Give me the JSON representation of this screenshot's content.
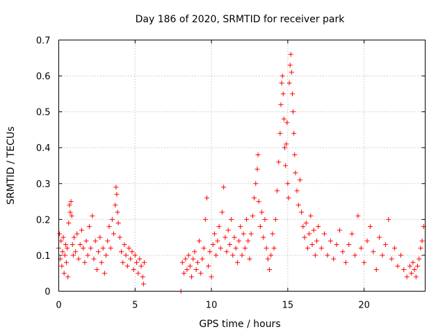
{
  "chart_data": {
    "type": "scatter",
    "title": "Day 186 of 2020, SRMTID for receiver park",
    "xlabel": "GPS time / hours",
    "ylabel": "SRMTID / TECUs",
    "xlim": [
      0,
      24
    ],
    "ylim": [
      0,
      0.7
    ],
    "x_ticks": [
      0,
      5,
      10,
      15,
      20
    ],
    "y_ticks": [
      0,
      0.1,
      0.2,
      0.3,
      0.4,
      0.5,
      0.6,
      0.7
    ],
    "x_tick_labels": [
      "0",
      "5",
      "10",
      "15",
      "20"
    ],
    "y_tick_labels": [
      "0",
      "0.1",
      "0.2",
      "0.3",
      "0.4",
      "0.5",
      "0.6",
      "0.7"
    ],
    "grid": true,
    "marker": "+",
    "marker_color": "#ff0000",
    "series": [
      {
        "name": "SRMTID",
        "points": [
          [
            0.0,
            0.12
          ],
          [
            0.05,
            0.16
          ],
          [
            0.1,
            0.09
          ],
          [
            0.15,
            0.14
          ],
          [
            0.2,
            0.07
          ],
          [
            0.25,
            0.11
          ],
          [
            0.3,
            0.15
          ],
          [
            0.35,
            0.05
          ],
          [
            0.4,
            0.1
          ],
          [
            0.45,
            0.13
          ],
          [
            0.5,
            0.08
          ],
          [
            0.55,
            0.12
          ],
          [
            0.6,
            0.04
          ],
          [
            0.65,
            0.19
          ],
          [
            0.7,
            0.24
          ],
          [
            0.75,
            0.22
          ],
          [
            0.8,
            0.25
          ],
          [
            0.85,
            0.21
          ],
          [
            0.9,
            0.13
          ],
          [
            0.95,
            0.1
          ],
          [
            1.0,
            0.15
          ],
          [
            1.1,
            0.11
          ],
          [
            1.2,
            0.16
          ],
          [
            1.3,
            0.09
          ],
          [
            1.4,
            0.13
          ],
          [
            1.5,
            0.17
          ],
          [
            1.6,
            0.12
          ],
          [
            1.7,
            0.08
          ],
          [
            1.8,
            0.14
          ],
          [
            1.9,
            0.1
          ],
          [
            2.0,
            0.18
          ],
          [
            2.1,
            0.12
          ],
          [
            2.2,
            0.21
          ],
          [
            2.3,
            0.09
          ],
          [
            2.4,
            0.14
          ],
          [
            2.5,
            0.06
          ],
          [
            2.6,
            0.11
          ],
          [
            2.7,
            0.15
          ],
          [
            2.8,
            0.08
          ],
          [
            2.9,
            0.12
          ],
          [
            3.0,
            0.05
          ],
          [
            3.1,
            0.1
          ],
          [
            3.2,
            0.14
          ],
          [
            3.3,
            0.18
          ],
          [
            3.4,
            0.12
          ],
          [
            3.5,
            0.2
          ],
          [
            3.6,
            0.16
          ],
          [
            3.7,
            0.24
          ],
          [
            3.75,
            0.29
          ],
          [
            3.8,
            0.27
          ],
          [
            3.85,
            0.22
          ],
          [
            3.9,
            0.19
          ],
          [
            4.0,
            0.15
          ],
          [
            4.1,
            0.11
          ],
          [
            4.2,
            0.08
          ],
          [
            4.3,
            0.13
          ],
          [
            4.4,
            0.1
          ],
          [
            4.5,
            0.07
          ],
          [
            4.6,
            0.12
          ],
          [
            4.7,
            0.09
          ],
          [
            4.8,
            0.11
          ],
          [
            4.9,
            0.06
          ],
          [
            5.0,
            0.1
          ],
          [
            5.1,
            0.08
          ],
          [
            5.2,
            0.05
          ],
          [
            5.3,
            0.09
          ],
          [
            5.4,
            0.07
          ],
          [
            5.5,
            0.04
          ],
          [
            5.55,
            0.02
          ],
          [
            5.6,
            0.08
          ],
          [
            8.0,
            0.0
          ],
          [
            8.1,
            0.08
          ],
          [
            8.2,
            0.05
          ],
          [
            8.3,
            0.09
          ],
          [
            8.4,
            0.06
          ],
          [
            8.5,
            0.1
          ],
          [
            8.6,
            0.07
          ],
          [
            8.7,
            0.04
          ],
          [
            8.8,
            0.09
          ],
          [
            8.9,
            0.11
          ],
          [
            9.0,
            0.06
          ],
          [
            9.1,
            0.08
          ],
          [
            9.2,
            0.14
          ],
          [
            9.3,
            0.05
          ],
          [
            9.4,
            0.09
          ],
          [
            9.5,
            0.12
          ],
          [
            9.6,
            0.2
          ],
          [
            9.7,
            0.26
          ],
          [
            9.8,
            0.07
          ],
          [
            9.9,
            0.11
          ],
          [
            10.0,
            0.04
          ],
          [
            10.1,
            0.13
          ],
          [
            10.2,
            0.16
          ],
          [
            10.3,
            0.1
          ],
          [
            10.4,
            0.14
          ],
          [
            10.5,
            0.18
          ],
          [
            10.6,
            0.12
          ],
          [
            10.7,
            0.22
          ],
          [
            10.8,
            0.29
          ],
          [
            10.9,
            0.15
          ],
          [
            11.0,
            0.11
          ],
          [
            11.1,
            0.17
          ],
          [
            11.2,
            0.13
          ],
          [
            11.3,
            0.2
          ],
          [
            11.4,
            0.1
          ],
          [
            11.5,
            0.15
          ],
          [
            11.6,
            0.12
          ],
          [
            11.7,
            0.08
          ],
          [
            11.8,
            0.14
          ],
          [
            11.9,
            0.18
          ],
          [
            12.0,
            0.1
          ],
          [
            12.1,
            0.16
          ],
          [
            12.2,
            0.12
          ],
          [
            12.3,
            0.2
          ],
          [
            12.4,
            0.14
          ],
          [
            12.5,
            0.09
          ],
          [
            12.6,
            0.16
          ],
          [
            12.7,
            0.21
          ],
          [
            12.8,
            0.26
          ],
          [
            12.9,
            0.3
          ],
          [
            13.0,
            0.34
          ],
          [
            13.05,
            0.38
          ],
          [
            13.1,
            0.25
          ],
          [
            13.2,
            0.18
          ],
          [
            13.3,
            0.22
          ],
          [
            13.4,
            0.15
          ],
          [
            13.5,
            0.2
          ],
          [
            13.6,
            0.12
          ],
          [
            13.7,
            0.09
          ],
          [
            13.8,
            0.06
          ],
          [
            13.9,
            0.1
          ],
          [
            14.0,
            0.16
          ],
          [
            14.1,
            0.12
          ],
          [
            14.2,
            0.2
          ],
          [
            14.3,
            0.28
          ],
          [
            14.4,
            0.36
          ],
          [
            14.5,
            0.44
          ],
          [
            14.55,
            0.52
          ],
          [
            14.6,
            0.58
          ],
          [
            14.65,
            0.6
          ],
          [
            14.7,
            0.55
          ],
          [
            14.75,
            0.48
          ],
          [
            14.8,
            0.4
          ],
          [
            14.85,
            0.35
          ],
          [
            14.9,
            0.41
          ],
          [
            14.95,
            0.47
          ],
          [
            15.0,
            0.3
          ],
          [
            15.05,
            0.26
          ],
          [
            15.1,
            0.58
          ],
          [
            15.15,
            0.63
          ],
          [
            15.2,
            0.66
          ],
          [
            15.25,
            0.61
          ],
          [
            15.3,
            0.55
          ],
          [
            15.35,
            0.5
          ],
          [
            15.4,
            0.44
          ],
          [
            15.45,
            0.38
          ],
          [
            15.5,
            0.33
          ],
          [
            15.6,
            0.28
          ],
          [
            15.7,
            0.24
          ],
          [
            15.8,
            0.31
          ],
          [
            15.9,
            0.22
          ],
          [
            16.0,
            0.18
          ],
          [
            16.1,
            0.15
          ],
          [
            16.2,
            0.19
          ],
          [
            16.3,
            0.12
          ],
          [
            16.4,
            0.16
          ],
          [
            16.5,
            0.21
          ],
          [
            16.6,
            0.13
          ],
          [
            16.7,
            0.17
          ],
          [
            16.8,
            0.1
          ],
          [
            16.9,
            0.14
          ],
          [
            17.0,
            0.18
          ],
          [
            17.2,
            0.12
          ],
          [
            17.4,
            0.16
          ],
          [
            17.6,
            0.1
          ],
          [
            17.8,
            0.14
          ],
          [
            18.0,
            0.09
          ],
          [
            18.2,
            0.13
          ],
          [
            18.4,
            0.17
          ],
          [
            18.6,
            0.11
          ],
          [
            18.8,
            0.08
          ],
          [
            19.0,
            0.13
          ],
          [
            19.2,
            0.16
          ],
          [
            19.4,
            0.1
          ],
          [
            19.6,
            0.21
          ],
          [
            19.8,
            0.12
          ],
          [
            20.0,
            0.08
          ],
          [
            20.2,
            0.14
          ],
          [
            20.4,
            0.18
          ],
          [
            20.6,
            0.11
          ],
          [
            20.8,
            0.06
          ],
          [
            21.0,
            0.15
          ],
          [
            21.2,
            0.1
          ],
          [
            21.4,
            0.13
          ],
          [
            21.6,
            0.2
          ],
          [
            21.8,
            0.09
          ],
          [
            22.0,
            0.12
          ],
          [
            22.2,
            0.07
          ],
          [
            22.4,
            0.1
          ],
          [
            22.6,
            0.06
          ],
          [
            22.8,
            0.04
          ],
          [
            23.0,
            0.07
          ],
          [
            23.1,
            0.05
          ],
          [
            23.2,
            0.08
          ],
          [
            23.3,
            0.06
          ],
          [
            23.4,
            0.04
          ],
          [
            23.5,
            0.07
          ],
          [
            23.6,
            0.09
          ],
          [
            23.7,
            0.12
          ],
          [
            23.8,
            0.14
          ],
          [
            23.9,
            0.18
          ]
        ]
      }
    ]
  }
}
